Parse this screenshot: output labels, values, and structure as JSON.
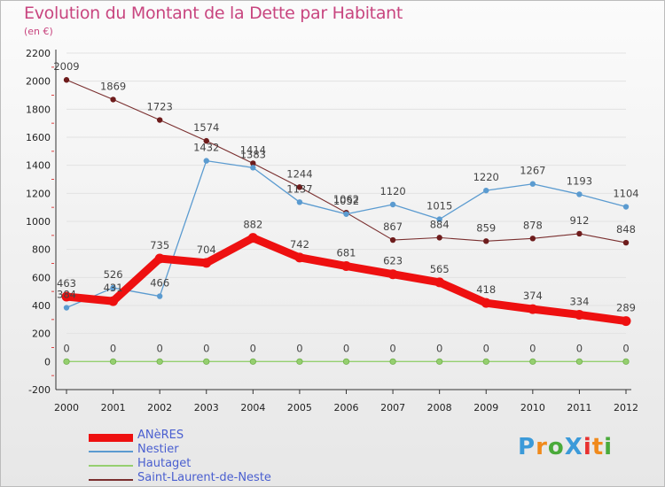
{
  "title": "Evolution du Montant de la Dette par Habitant",
  "subtitle": "(en €)",
  "logo": {
    "text": "ProXiti",
    "colors": [
      "#3b9ad9",
      "#f08a1c",
      "#4aaa3a",
      "#3b9ad9",
      "#e8312f",
      "#f08a1c",
      "#4aaa3a"
    ]
  },
  "chart_data": {
    "type": "line",
    "x": [
      "2000",
      "2001",
      "2002",
      "2003",
      "2004",
      "2005",
      "2006",
      "2007",
      "2008",
      "2009",
      "2010",
      "2011",
      "2012"
    ],
    "ylim": [
      -200,
      2200
    ],
    "yticks": [
      -200,
      0,
      200,
      400,
      600,
      800,
      1000,
      1200,
      1400,
      1600,
      1800,
      2000,
      2200
    ],
    "legend_position": "bottom-left",
    "series": [
      {
        "name": "ANèRES",
        "color": "#ee1010",
        "width": 9,
        "values": [
          463,
          431,
          735,
          704,
          882,
          742,
          681,
          623,
          565,
          418,
          374,
          334,
          289
        ],
        "labels": [
          "463",
          "431",
          "735",
          "704",
          "882",
          "742",
          "681",
          "623",
          "565",
          "418",
          "374",
          "334",
          "289"
        ]
      },
      {
        "name": "Nestier",
        "color": "#5b9bd0",
        "width": 1.3,
        "values": [
          384,
          526,
          466,
          1432,
          1383,
          1137,
          1052,
          1120,
          1015,
          1220,
          1267,
          1193,
          1104
        ],
        "labels": [
          "384",
          "526",
          "466",
          "1432",
          "1383",
          "1137",
          "1052",
          "1120",
          "1015",
          "1220",
          "1267",
          "1193",
          "1104"
        ]
      },
      {
        "name": "Hautaget",
        "color": "#95cf6f",
        "width": 1.3,
        "values": [
          0,
          0,
          0,
          0,
          0,
          0,
          0,
          0,
          0,
          0,
          0,
          0,
          0
        ],
        "labels": [
          "0",
          "0",
          "0",
          "0",
          "0",
          "0",
          "0",
          "0",
          "0",
          "0",
          "0",
          "0",
          "0"
        ]
      },
      {
        "name": "Saint-Laurent-de-Neste",
        "color": "#7a2f2f",
        "width": 1.1,
        "values": [
          2009,
          1869,
          1723,
          1574,
          1414,
          1244,
          1062,
          867,
          884,
          859,
          878,
          912,
          848
        ],
        "labels": [
          "2009",
          "1869",
          "1723",
          "1574",
          "1414",
          "1244",
          "1062",
          "867",
          "884",
          "859",
          "878",
          "912",
          "848"
        ]
      }
    ]
  }
}
